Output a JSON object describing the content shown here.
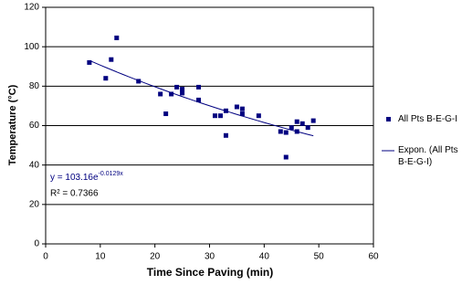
{
  "chart_data": {
    "type": "scatter",
    "x_label": "Time Since Paving (min)",
    "y_label": "Temperature (°C)",
    "xlim": [
      0,
      60
    ],
    "xticks": [
      0,
      10,
      20,
      30,
      40,
      50,
      60
    ],
    "ylim": [
      0,
      120
    ],
    "yticks": [
      0,
      20,
      40,
      60,
      80,
      100,
      120
    ],
    "grid": true,
    "legend": "right",
    "series": [
      {
        "name": "All Pts B-E-G-I",
        "color": "#000080",
        "x": [
          8,
          11,
          12,
          13,
          17,
          21,
          22,
          23,
          24,
          25,
          25,
          28,
          28,
          31,
          32,
          33,
          33,
          35,
          36,
          36,
          39,
          43,
          44,
          44,
          45,
          46,
          46,
          47,
          48,
          49
        ],
        "values": [
          92,
          84,
          93.5,
          104.5,
          82.5,
          76,
          66,
          76,
          79.5,
          78.5,
          76.5,
          79.5,
          73,
          65,
          65,
          67.5,
          55,
          69.5,
          68.5,
          66,
          65,
          57,
          56.5,
          44,
          59,
          62,
          57,
          61,
          59,
          62.5
        ]
      }
    ],
    "trendline": {
      "name": "Expon. (All Pts B-E-G-I)",
      "color": "#000080",
      "a": 103.16,
      "b": -0.0129,
      "r2": 0.7366,
      "equation": "y = 103.16e",
      "exponent": "-0.0129x",
      "r2_label": "R² = 0.7366"
    }
  }
}
